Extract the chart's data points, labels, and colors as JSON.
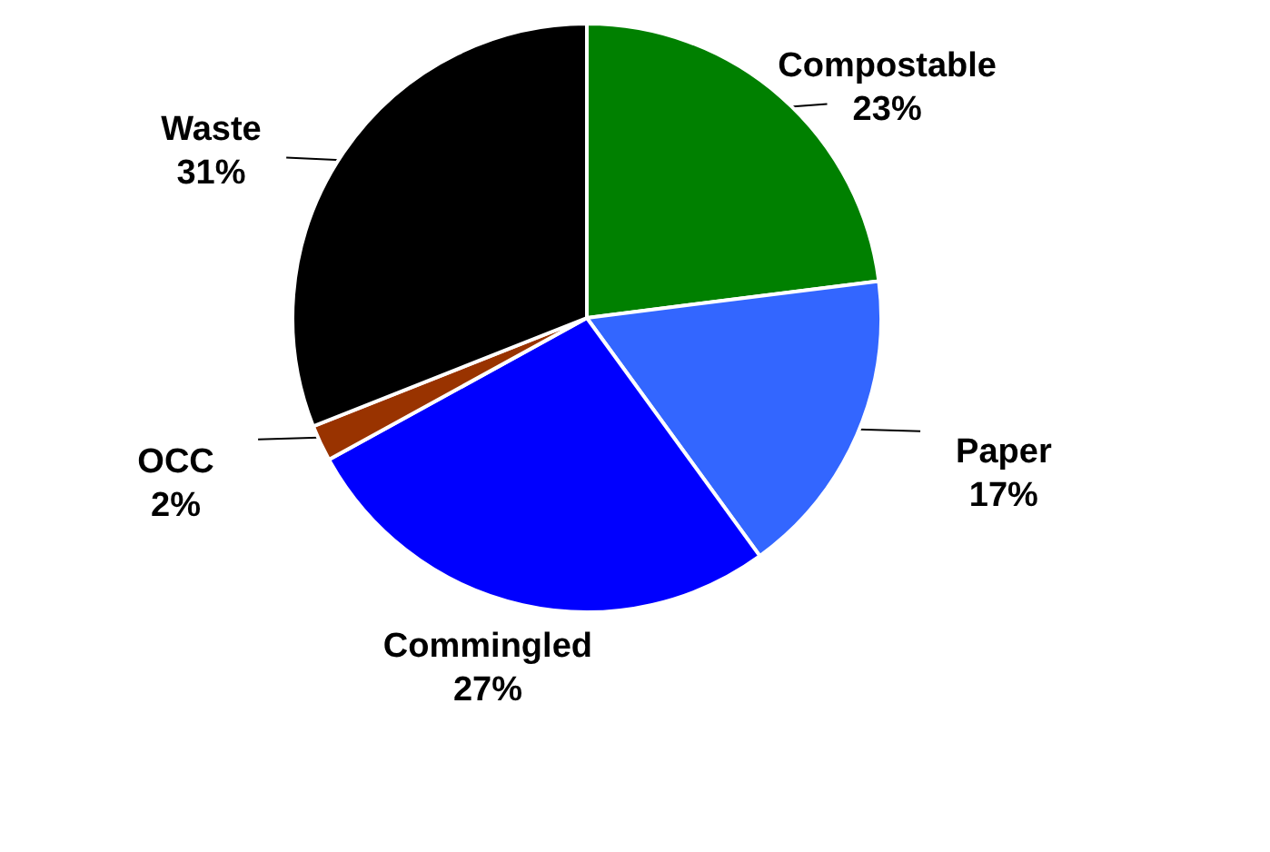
{
  "chart_data": {
    "type": "pie",
    "categories": [
      "Compostable",
      "Paper",
      "Commingled",
      "OCC",
      "Waste"
    ],
    "values": [
      23,
      17,
      27,
      2,
      31
    ],
    "colors": [
      "#008000",
      "#3366ff",
      "#0000ff",
      "#993300",
      "#000000"
    ],
    "value_labels": [
      "23%",
      "17%",
      "27%",
      "2%",
      "31%"
    ]
  }
}
